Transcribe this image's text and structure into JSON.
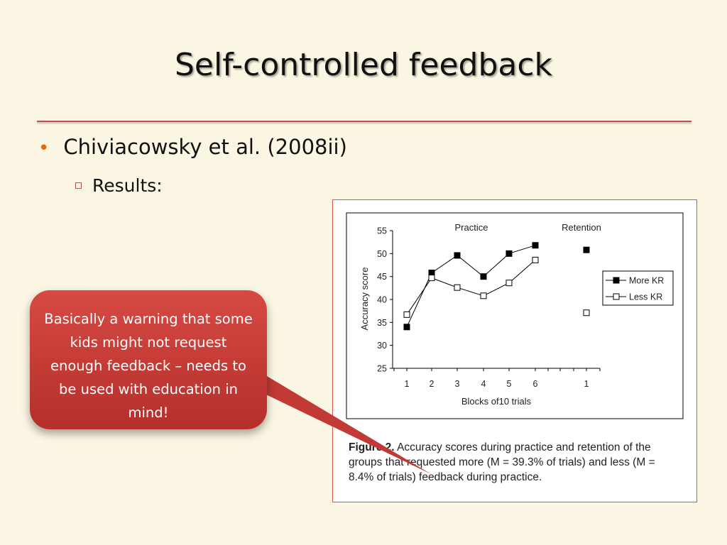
{
  "slide": {
    "title": "Self-controlled feedback",
    "bullet": "Chiviacowsky et al. (2008ii)",
    "sub_bullet": "Results:",
    "callout": "Basically a warning that some kids might not request enough feedback – needs to be used with education in mind!",
    "colors": {
      "accent_rule": "#c0504d",
      "bullet_dot": "#e36c0a",
      "callout_fill": "#c9403b"
    }
  },
  "figure": {
    "caption_label": "Figure 2.",
    "caption_text": "Accuracy scores during practice and retention of the groups that requested more (M = 39.3% of trials) and less (M = 8.4% of trials) feedback during practice."
  },
  "chart_data": {
    "type": "line",
    "panels": [
      "Practice",
      "Retention"
    ],
    "xlabel": "Blocks of10 trials",
    "ylabel": "Accuracy score",
    "ylim": [
      25,
      55
    ],
    "yticks": [
      25,
      30,
      35,
      40,
      45,
      50,
      55
    ],
    "practice_x": [
      "1",
      "2",
      "3",
      "4",
      "5",
      "6"
    ],
    "retention_x": [
      "1"
    ],
    "legend_position": "right",
    "series": [
      {
        "name": "More KR",
        "marker": "filled-square",
        "practice": [
          34,
          45.8,
          49.6,
          45,
          50,
          51.8
        ],
        "retention": [
          50.8
        ]
      },
      {
        "name": "Less KR",
        "marker": "open-square",
        "practice": [
          36.7,
          44.7,
          42.6,
          40.8,
          43.6,
          48.6
        ],
        "retention": [
          37.1
        ]
      }
    ]
  }
}
